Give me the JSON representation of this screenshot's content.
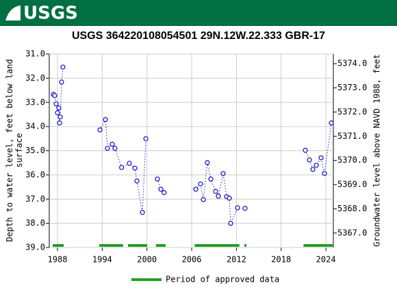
{
  "header": {
    "logo": "USGS"
  },
  "chart_data": {
    "type": "line",
    "title": "USGS 364220108054501 29N.12W.22.333 GBR-17",
    "ylabel": [
      "Depth to water level, feet below land",
      "surface"
    ],
    "y2label": "Groundwater level above NAVD 1988, feet",
    "x": [
      1987.45,
      1987.63,
      1987.82,
      1988.0,
      1988.18,
      1988.28,
      1988.37,
      1988.55,
      1988.73,
      null,
      1993.69,
      1994.43,
      1994.7,
      1995.35,
      1995.7,
      1996.6,
      1997.64,
      1998.38,
      1998.65,
      1999.39,
      1999.85,
      null,
      2001.4,
      2001.87,
      2002.3,
      null,
      2006.55,
      2007.19,
      2007.56,
      2008.1,
      2008.57,
      2009.21,
      2009.58,
      2010.22,
      2010.68,
      2011.05,
      2011.23,
      2012.15,
      null,
      2013.16,
      null,
      2021.24,
      2021.79,
      2022.25,
      2022.71,
      2023.35,
      2023.81,
      2024.73
    ],
    "series": [
      {
        "name": "Depth to water level",
        "color": "#1c1cc8",
        "values": [
          32.67,
          32.72,
          33.06,
          33.43,
          33.23,
          33.85,
          33.6,
          32.16,
          31.54,
          null,
          34.14,
          33.71,
          34.9,
          34.73,
          34.9,
          35.69,
          35.52,
          35.72,
          36.25,
          37.55,
          34.5,
          null,
          36.17,
          36.59,
          36.73,
          null,
          36.59,
          36.37,
          37.02,
          35.49,
          36.17,
          36.68,
          36.88,
          35.94,
          36.9,
          36.96,
          38.0,
          37.36,
          null,
          37.38,
          null,
          34.98,
          35.38,
          35.77,
          35.6,
          35.29,
          35.94,
          33.85
        ]
      }
    ],
    "periods": [
      [
        1987.36,
        1988.83
      ],
      [
        1993.6,
        1996.8
      ],
      [
        1997.46,
        2000.03
      ],
      [
        2001.2,
        2002.5
      ],
      [
        2006.4,
        2012.4
      ],
      [
        2013.07,
        2013.34
      ],
      [
        2021.0,
        2024.9
      ]
    ],
    "period_name": "Period of approved data",
    "period_color": "#22a022",
    "xlim": [
      1986.9,
      2025.0
    ],
    "xticks": [
      1988,
      1994,
      2000,
      2006,
      2012,
      2018,
      2024
    ],
    "ylim": [
      31,
      39
    ],
    "yticks": [
      {
        "value": 31,
        "label": "31.0"
      },
      {
        "value": 32,
        "label": "32.0"
      },
      {
        "value": 33,
        "label": "33.0"
      },
      {
        "value": 34,
        "label": "34.0"
      },
      {
        "value": 35,
        "label": "35.0"
      },
      {
        "value": 36,
        "label": "36.0"
      },
      {
        "value": 37,
        "label": "37.0"
      },
      {
        "value": 38,
        "label": "38.0"
      },
      {
        "value": 39,
        "label": "39.0"
      }
    ],
    "y2lim": [
      5374.4,
      5366.4
    ],
    "y2ticks": [
      {
        "value": 5374,
        "label": "5374.0"
      },
      {
        "value": 5373,
        "label": "5373.0"
      },
      {
        "value": 5372,
        "label": "5372.0"
      },
      {
        "value": 5371,
        "label": "5371.0"
      },
      {
        "value": 5370,
        "label": "5370.0"
      },
      {
        "value": 5369,
        "label": "5369.0"
      },
      {
        "value": 5368,
        "label": "5368.0"
      },
      {
        "value": 5367,
        "label": "5367.0"
      }
    ],
    "grid": true
  }
}
